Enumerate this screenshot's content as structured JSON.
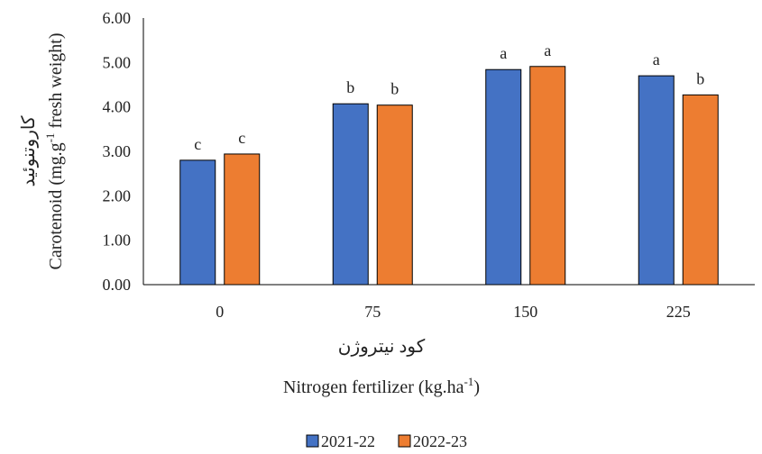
{
  "chart_data": {
    "type": "bar",
    "categories": [
      "0",
      "75",
      "150",
      "225"
    ],
    "series": [
      {
        "name": "2021-22",
        "values": [
          2.8,
          4.07,
          4.84,
          4.7
        ],
        "letters": [
          "c",
          "b",
          "a",
          "a"
        ],
        "color": "#4472C4"
      },
      {
        "name": "2022-23",
        "values": [
          2.94,
          4.04,
          4.91,
          4.27
        ],
        "letters": [
          "c",
          "b",
          "a",
          "b"
        ],
        "color": "#ED7D31"
      }
    ],
    "yticks": [
      "0.00",
      "1.00",
      "2.00",
      "3.00",
      "4.00",
      "5.00",
      "6.00"
    ],
    "ylim": [
      0,
      6
    ],
    "ylabel_fa": "کاروتنوئید",
    "ylabel_en_prefix": "Carotenoid (mg.g",
    "ylabel_en_sup": "-1",
    "ylabel_en_suffix": " fresh weight)",
    "xlabel_fa": "کود نیتروژن",
    "xlabel_en_prefix": "Nitrogen fertilizer (kg.ha",
    "xlabel_en_sup": "-1",
    "xlabel_en_suffix": ")",
    "legend_position": "bottom",
    "grid": false
  }
}
